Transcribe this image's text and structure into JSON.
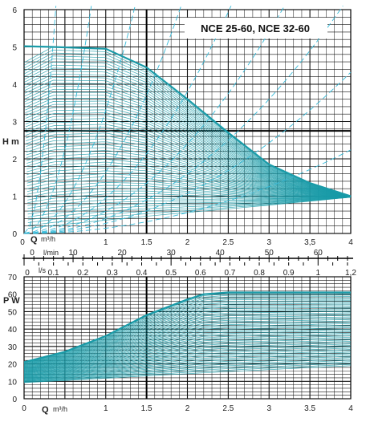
{
  "chart_data": [
    {
      "type": "line",
      "title": "NCE 25-60,  NCE 32-60",
      "ylabel": "H m",
      "xlabel": "Q m³/h",
      "xlim": [
        0,
        4
      ],
      "ylim": [
        0,
        6
      ],
      "x_ticks": [
        "0",
        "0.5",
        "1",
        "1.5",
        "2",
        "2.5",
        "3",
        "3,5",
        "4"
      ],
      "y_ticks": [
        "0",
        "1",
        "2",
        "3",
        "4",
        "5",
        "6"
      ],
      "grid": true,
      "series": [
        {
          "x": [
            0.35,
            1.0,
            1.5,
            2.0,
            2.5,
            3.0,
            3.5,
            4.0
          ],
          "y": [
            5.0,
            4.95,
            4.45,
            3.6,
            2.7,
            1.85,
            1.35,
            1.0
          ]
        }
      ],
      "secondary_axes": [
        {
          "label": "l/min",
          "range": [
            0,
            66.7
          ],
          "ticks": [
            "0",
            "10",
            "20",
            "30",
            "40",
            "50",
            "60"
          ]
        },
        {
          "label": "l/s",
          "range": [
            0,
            1.11
          ],
          "ticks": [
            "0",
            "0.1",
            "0.2",
            "0.3",
            "0.4",
            "0.5",
            "0.6",
            "0.7",
            "0.8",
            "0.9",
            "1",
            "1,2"
          ]
        }
      ]
    },
    {
      "type": "line",
      "ylabel": "P W",
      "xlabel": "Q m³/h",
      "xlim": [
        0,
        4
      ],
      "ylim": [
        0,
        70
      ],
      "x_ticks": [
        "0",
        "0.5",
        "1",
        "1.5",
        "2",
        "2.5",
        "3",
        "3.5",
        "4"
      ],
      "y_ticks": [
        "0",
        "10",
        "20",
        "30",
        "40",
        "50",
        "60",
        "70"
      ],
      "grid": true,
      "series": [
        {
          "x": [
            0,
            0.5,
            1.0,
            1.5,
            2.0,
            2.2,
            2.5,
            3.0,
            3.5,
            4.0
          ],
          "y": [
            21,
            27,
            36,
            48,
            57,
            60,
            61,
            61,
            61,
            61
          ]
        }
      ]
    }
  ],
  "colors": {
    "curve": "#1a9ba8",
    "grid": "#111111",
    "dash": "#35b9d8"
  }
}
